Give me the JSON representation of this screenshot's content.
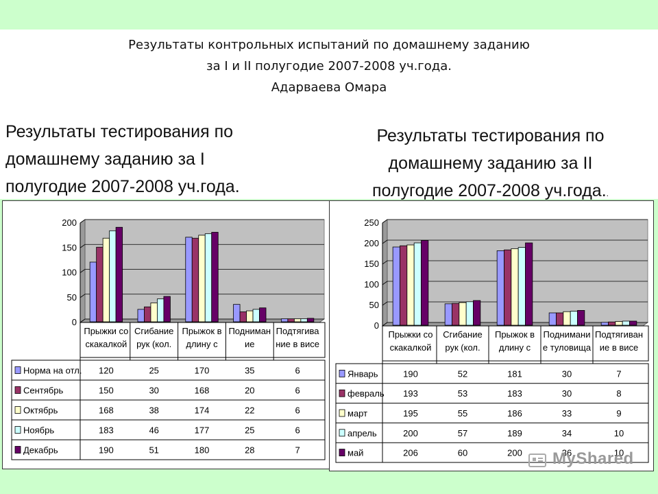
{
  "header": {
    "line1": "Результаты контрольных испытаний по домашнему заданию",
    "line2": "за I и II полугодие 2007-2008 уч.года.",
    "line3": "Адарваева Омара"
  },
  "subtitles": {
    "left": [
      "Результаты тестирования по",
      "домашнему заданию за I",
      "полугодие 2007-2008 уч.года."
    ],
    "right": [
      "Результаты тестирования по",
      "домашнему заданию за II",
      "полугодие 2007-2008 уч.года."
    ],
    "right_dot": "."
  },
  "watermark": "MyShared",
  "chart_data": [
    {
      "type": "bar",
      "categories": [
        "Прыжки со скакалкой",
        "Сгибание рук (кол.",
        "Прыжок в длину с",
        "Подниман ие",
        "Подтягива ние в висе"
      ],
      "category_lines": [
        [
          "Прыжки со",
          "скакалкой"
        ],
        [
          "Сгибание",
          "рук  (кол."
        ],
        [
          "Прыжок в",
          "длину с"
        ],
        [
          "Подниман",
          "ие"
        ],
        [
          "Подтягива",
          "ние в висе"
        ]
      ],
      "series": [
        {
          "name": "Норма на отл.",
          "values": [
            120,
            25,
            170,
            35,
            6
          ],
          "color": "#9999ff"
        },
        {
          "name": "Сентябрь",
          "values": [
            150,
            30,
            168,
            20,
            6
          ],
          "color": "#993366"
        },
        {
          "name": "Октябрь",
          "values": [
            168,
            38,
            174,
            22,
            6
          ],
          "color": "#ffffcc"
        },
        {
          "name": "Ноябрь",
          "values": [
            183,
            46,
            177,
            25,
            6
          ],
          "color": "#ccffff"
        },
        {
          "name": "Декабрь",
          "values": [
            190,
            51,
            180,
            28,
            7
          ],
          "color": "#660066"
        }
      ],
      "ylim": [
        0,
        200
      ],
      "yticks": [
        0,
        50,
        100,
        150,
        200
      ],
      "grid": true,
      "legend": "data-table",
      "plot_bg": "#c0c0c0"
    },
    {
      "type": "bar",
      "categories": [
        "Прыжки со скакалкой",
        "Сгибание рук (кол.",
        "Прыжок в длину с",
        "Поднимание туловища",
        "Подтягивание в висе"
      ],
      "category_lines": [
        [
          "Прыжки со",
          "скакалкой"
        ],
        [
          "Сгибание",
          "рук  (кол."
        ],
        [
          "Прыжок в",
          "длину с"
        ],
        [
          "Поднимани",
          "е туловища"
        ],
        [
          "Подтягиван",
          "ие в висе"
        ]
      ],
      "series": [
        {
          "name": "Январь",
          "values": [
            190,
            52,
            181,
            30,
            7
          ],
          "color": "#9999ff"
        },
        {
          "name": "февраль",
          "values": [
            193,
            53,
            183,
            30,
            8
          ],
          "color": "#993366"
        },
        {
          "name": "март",
          "values": [
            195,
            55,
            186,
            33,
            9
          ],
          "color": "#ffffcc"
        },
        {
          "name": "апрель",
          "values": [
            200,
            57,
            189,
            34,
            10
          ],
          "color": "#ccffff"
        },
        {
          "name": "май",
          "values": [
            206,
            60,
            200,
            36,
            10
          ],
          "color": "#660066"
        }
      ],
      "ylim": [
        0,
        250
      ],
      "yticks": [
        0,
        50,
        100,
        150,
        200,
        250
      ],
      "grid": true,
      "legend": "data-table",
      "plot_bg": "#c0c0c0"
    }
  ]
}
